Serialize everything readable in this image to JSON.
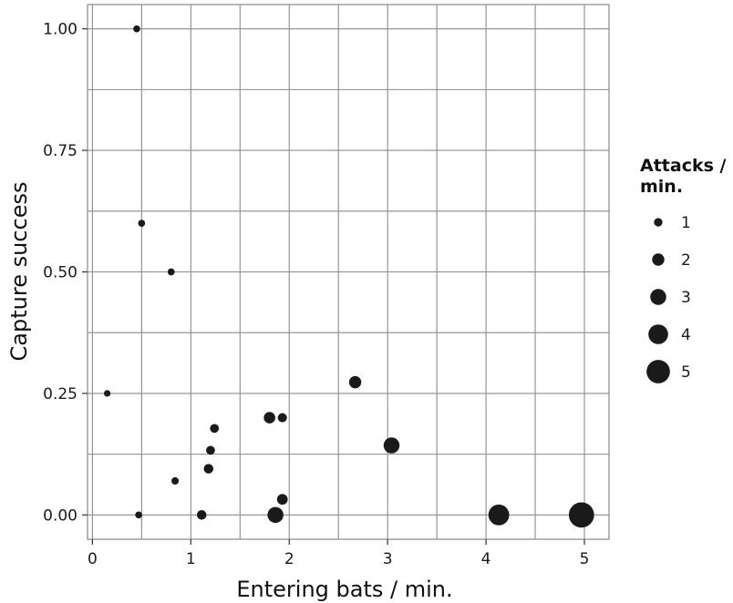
{
  "chart_data": {
    "type": "scatter",
    "xlabel": "Entering bats / min.",
    "ylabel": "Capture success",
    "xlim": [
      -0.05,
      5.25
    ],
    "ylim": [
      -0.05,
      1.05
    ],
    "x_ticks": [
      0,
      1,
      2,
      3,
      4,
      5
    ],
    "x_tick_labels": [
      "0",
      "1",
      "2",
      "3",
      "4",
      "5"
    ],
    "y_ticks": [
      0.0,
      0.25,
      0.5,
      0.75,
      1.0
    ],
    "y_tick_labels": [
      "0.00",
      "0.25",
      "0.50",
      "0.75",
      "1.00"
    ],
    "grid": true,
    "legend": {
      "title_lines": [
        "Attacks /",
        "min."
      ],
      "position": "right",
      "entries": [
        {
          "label": "1",
          "size": 1
        },
        {
          "label": "2",
          "size": 2
        },
        {
          "label": "3",
          "size": 3
        },
        {
          "label": "4",
          "size": 4
        },
        {
          "label": "5",
          "size": 5
        }
      ]
    },
    "points": [
      {
        "x": 0.45,
        "y": 1.0,
        "size": 0.6
      },
      {
        "x": 0.5,
        "y": 0.6,
        "size": 0.6
      },
      {
        "x": 0.8,
        "y": 0.5,
        "size": 0.6
      },
      {
        "x": 0.15,
        "y": 0.25,
        "size": 0.5
      },
      {
        "x": 0.47,
        "y": 0.0,
        "size": 0.6
      },
      {
        "x": 0.84,
        "y": 0.07,
        "size": 0.7
      },
      {
        "x": 1.11,
        "y": 0.0,
        "size": 1.3
      },
      {
        "x": 1.18,
        "y": 0.095,
        "size": 1.3
      },
      {
        "x": 1.2,
        "y": 0.133,
        "size": 1.1
      },
      {
        "x": 1.24,
        "y": 0.178,
        "size": 1.1
      },
      {
        "x": 1.8,
        "y": 0.2,
        "size": 1.8
      },
      {
        "x": 1.93,
        "y": 0.2,
        "size": 1.2
      },
      {
        "x": 1.86,
        "y": 0.0,
        "size": 3.0
      },
      {
        "x": 1.93,
        "y": 0.032,
        "size": 1.6
      },
      {
        "x": 2.67,
        "y": 0.273,
        "size": 2.0
      },
      {
        "x": 3.04,
        "y": 0.143,
        "size": 3.0
      },
      {
        "x": 4.13,
        "y": 0.0,
        "size": 4.3
      },
      {
        "x": 4.97,
        "y": 0.0,
        "size": 5.5
      }
    ]
  }
}
